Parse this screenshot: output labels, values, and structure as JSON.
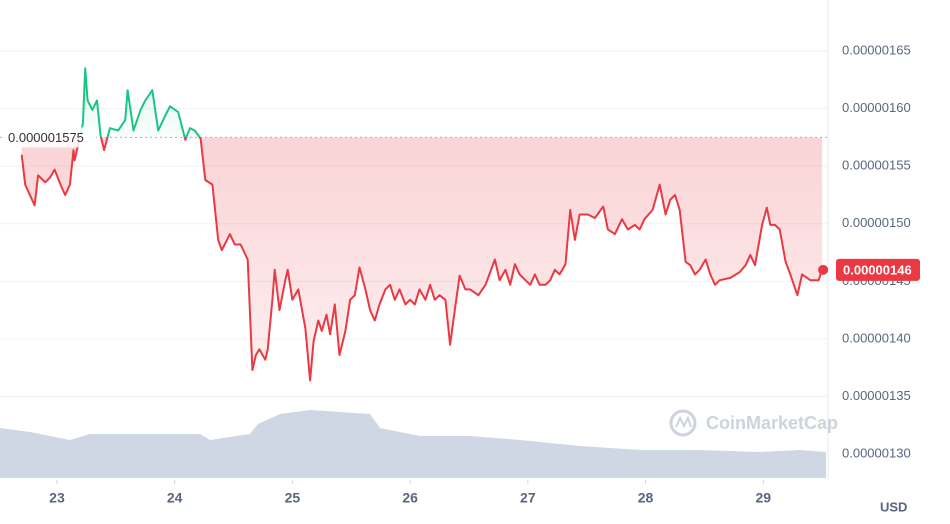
{
  "chart_data": {
    "type": "line",
    "x": [
      22.7,
      22.73,
      22.77,
      22.81,
      22.84,
      22.9,
      22.94,
      22.98,
      23.03,
      23.07,
      23.11,
      23.14,
      23.15,
      23.22,
      23.24,
      23.26,
      23.3,
      23.34,
      23.37,
      23.4,
      23.45,
      23.52,
      23.58,
      23.6,
      23.65,
      23.71,
      23.75,
      23.81,
      23.86,
      23.92,
      23.96,
      24.03,
      24.09,
      24.13,
      24.17,
      24.22,
      24.26,
      24.32,
      24.37,
      24.4,
      24.47,
      24.51,
      24.56,
      24.62,
      24.66,
      24.69,
      24.72,
      24.77,
      24.79,
      24.83,
      24.85,
      24.89,
      24.94,
      24.96,
      25.0,
      25.05,
      25.11,
      25.15,
      25.18,
      25.22,
      25.25,
      25.29,
      25.32,
      25.36,
      25.4,
      25.45,
      25.49,
      25.53,
      25.57,
      25.62,
      25.66,
      25.7,
      25.74,
      25.79,
      25.83,
      25.87,
      25.91,
      25.96,
      26.0,
      26.04,
      26.08,
      26.13,
      26.17,
      26.21,
      26.25,
      26.3,
      26.34,
      26.38,
      26.42,
      26.47,
      26.51,
      26.58,
      26.64,
      26.72,
      26.76,
      26.81,
      26.85,
      26.89,
      26.93,
      26.98,
      27.02,
      27.06,
      27.1,
      27.15,
      27.19,
      27.23,
      27.27,
      27.32,
      27.36,
      27.4,
      27.44,
      27.51,
      27.57,
      27.64,
      27.68,
      27.74,
      27.8,
      27.85,
      27.91,
      27.95,
      27.99,
      28.06,
      28.12,
      28.17,
      28.21,
      28.25,
      28.29,
      28.34,
      28.38,
      28.42,
      28.46,
      28.51,
      28.55,
      28.59,
      28.63,
      28.72,
      28.8,
      28.85,
      28.89,
      28.93,
      28.99,
      29.03,
      29.06,
      29.1,
      29.14,
      29.19,
      29.23,
      29.29,
      29.33,
      29.4,
      29.47,
      29.5
    ],
    "series": [
      {
        "up_color": "#16c784",
        "color": "#ea3943",
        "values": [
          1.56e-06,
          1.534e-06,
          1.525e-06,
          1.516e-06,
          1.542e-06,
          1.536e-06,
          1.54e-06,
          1.547e-06,
          1.534e-06,
          1.525e-06,
          1.534e-06,
          1.564e-06,
          1.555e-06,
          1.587e-06,
          1.635e-06,
          1.607e-06,
          1.599e-06,
          1.607e-06,
          1.577e-06,
          1.564e-06,
          1.583e-06,
          1.581e-06,
          1.59e-06,
          1.616e-06,
          1.581e-06,
          1.599e-06,
          1.607e-06,
          1.616e-06,
          1.581e-06,
          1.594e-06,
          1.602e-06,
          1.597e-06,
          1.573e-06,
          1.583e-06,
          1.581e-06,
          1.574e-06,
          1.538e-06,
          1.534e-06,
          1.486e-06,
          1.477e-06,
          1.491e-06,
          1.482e-06,
          1.482e-06,
          1.469e-06,
          1.373e-06,
          1.386e-06,
          1.391e-06,
          1.382e-06,
          1.391e-06,
          1.434e-06,
          1.46e-06,
          1.425e-06,
          1.451e-06,
          1.46e-06,
          1.434e-06,
          1.443e-06,
          1.409e-06,
          1.364e-06,
          1.398e-06,
          1.416e-06,
          1.407e-06,
          1.421e-06,
          1.404e-06,
          1.43e-06,
          1.386e-06,
          1.407e-06,
          1.434e-06,
          1.438e-06,
          1.462e-06,
          1.443e-06,
          1.425e-06,
          1.416e-06,
          1.43e-06,
          1.443e-06,
          1.447e-06,
          1.434e-06,
          1.443e-06,
          1.43e-06,
          1.434e-06,
          1.43e-06,
          1.443e-06,
          1.434e-06,
          1.447e-06,
          1.434e-06,
          1.438e-06,
          1.434e-06,
          1.395e-06,
          1.425e-06,
          1.455e-06,
          1.443e-06,
          1.443e-06,
          1.438e-06,
          1.447e-06,
          1.469e-06,
          1.451e-06,
          1.46e-06,
          1.447e-06,
          1.465e-06,
          1.456e-06,
          1.451e-06,
          1.447e-06,
          1.456e-06,
          1.447e-06,
          1.447e-06,
          1.451e-06,
          1.46e-06,
          1.456e-06,
          1.465e-06,
          1.512e-06,
          1.486e-06,
          1.508e-06,
          1.508e-06,
          1.505e-06,
          1.515e-06,
          1.495e-06,
          1.491e-06,
          1.504e-06,
          1.495e-06,
          1.499e-06,
          1.495e-06,
          1.504e-06,
          1.512e-06,
          1.534e-06,
          1.508e-06,
          1.521e-06,
          1.525e-06,
          1.512e-06,
          1.467e-06,
          1.464e-06,
          1.456e-06,
          1.46e-06,
          1.469e-06,
          1.456e-06,
          1.447e-06,
          1.451e-06,
          1.453e-06,
          1.458e-06,
          1.464e-06,
          1.473e-06,
          1.464e-06,
          1.499e-06,
          1.514e-06,
          1.499e-06,
          1.499e-06,
          1.495e-06,
          1.467e-06,
          1.456e-06,
          1.438e-06,
          1.456e-06,
          1.451e-06,
          1.451e-06,
          1.46e-06
        ]
      }
    ],
    "xlim": [
      22.516,
      29.55
    ],
    "ylim": [
      1.2775e-06,
      1.6943e-06
    ],
    "xticks": [
      23,
      24,
      25,
      26,
      27,
      28,
      29
    ],
    "yticks": [
      {
        "value": 1.3e-06,
        "label": "0.00000130"
      },
      {
        "value": 1.35e-06,
        "label": "0.00000135"
      },
      {
        "value": 1.4e-06,
        "label": "0.00000140"
      },
      {
        "value": 1.45e-06,
        "label": "0.00000145"
      },
      {
        "value": 1.5e-06,
        "label": "0.00000150"
      },
      {
        "value": 1.55e-06,
        "label": "0.00000155"
      },
      {
        "value": 1.6e-06,
        "label": "0.00000160"
      },
      {
        "value": 1.65e-06,
        "label": "0.00000165"
      }
    ],
    "reference": {
      "value": 1.575e-06,
      "label": "0.000001575"
    },
    "current": {
      "value": 1.46e-06,
      "label": "0.00000146"
    },
    "watermark": "CoinMarketCap",
    "currency": "USD",
    "grid": true
  }
}
